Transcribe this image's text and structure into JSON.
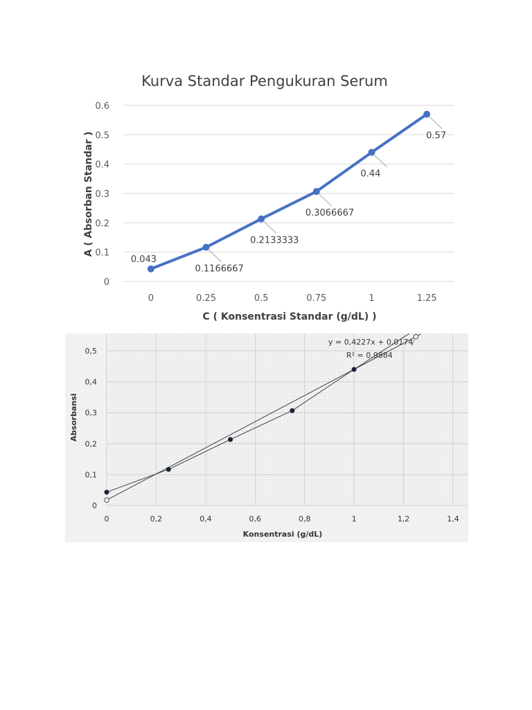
{
  "chart_data": [
    {
      "type": "line",
      "title": "Kurva Standar Pengukuran Serum",
      "xlabel": "C ( Konsentrasi Standar (g/dL) )",
      "ylabel": "A ( Absorban Standar )",
      "x": [
        0,
        0.25,
        0.5,
        0.75,
        1,
        1.25
      ],
      "x_tick_labels": [
        "0",
        "0.25",
        "0.5",
        "0.75",
        "1",
        "1.25"
      ],
      "y_tick_labels": [
        "0",
        "0.1",
        "0.2",
        "0.3",
        "0.4",
        "0.5",
        "0.6"
      ],
      "ylim": [
        0,
        0.6
      ],
      "grid": true,
      "series": [
        {
          "values": [
            0.043,
            0.1166667,
            0.2133333,
            0.3066667,
            0.44,
            0.57
          ],
          "data_labels": [
            "0.043",
            "0.1166667",
            "0.2133333",
            "0.3066667",
            "0.44",
            "0.57"
          ],
          "color": "#4472c4"
        }
      ]
    },
    {
      "type": "scatter",
      "xlabel": "Konsentrasi (g/dL)",
      "ylabel": "Absorbansi",
      "x_tick_labels": [
        "0",
        "0,2",
        "0,4",
        "0,6",
        "0,8",
        "1",
        "1,2",
        "1,4"
      ],
      "y_tick_labels": [
        "0",
        "0,1",
        "0,2",
        "0,3",
        "0,4",
        "0,5"
      ],
      "xlim": [
        0,
        1.4
      ],
      "ylim": [
        0,
        0.55
      ],
      "grid": true,
      "equation": "y = 0,4227x + 0,0174",
      "r_squared": "R² = 0,9884",
      "trendline": {
        "slope": 0.4227,
        "intercept": 0.0174
      },
      "series": [
        {
          "x": [
            0,
            0.25,
            0.5,
            0.75,
            1,
            1.25
          ],
          "values": [
            0.043,
            0.1166667,
            0.2133333,
            0.3066667,
            0.44,
            0.57
          ],
          "marker": "filled",
          "color": "#1a2233"
        },
        {
          "x": [
            0,
            1.25
          ],
          "values": [
            0.0174,
            0.546
          ],
          "marker": "open",
          "color": "#555c6a"
        }
      ]
    }
  ]
}
